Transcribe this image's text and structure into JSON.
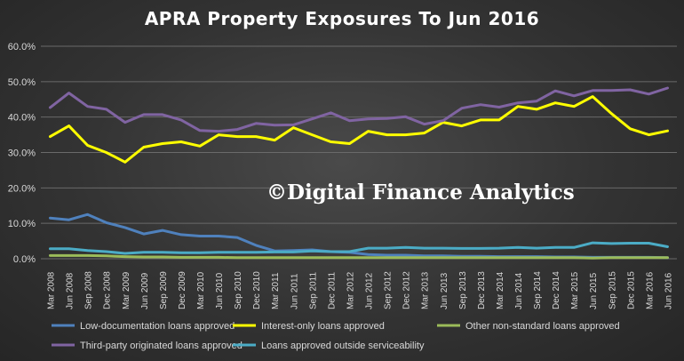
{
  "colors": {
    "Low-documentation loans approved": "#4f81bd",
    "Interest-only loans approved": "#ffff00",
    "Other non-standard loans approved": "#9bbb59",
    "Third-party originated loans approved": "#8064a2",
    "Loans approved outside serviceability": "#4bacc6"
  },
  "watermark": "©Digital Finance Analytics",
  "chart_data": {
    "type": "line",
    "title": "APRA Property Exposures To Jun 2016",
    "xlabel": "",
    "ylabel": "",
    "ylim": [
      0,
      60
    ],
    "ytick_labels": [
      "0.0%",
      "10.0%",
      "20.0%",
      "30.0%",
      "40.0%",
      "50.0%",
      "60.0%"
    ],
    "grid": true,
    "legend_position": "bottom",
    "categories": [
      "Mar 2008",
      "Jun 2008",
      "Sep 2008",
      "Dec 2008",
      "Mar 2009",
      "Jun 2009",
      "Sep 2009",
      "Dec 2009",
      "Mar 2010",
      "Jun 2010",
      "Sep 2010",
      "Dec 2010",
      "Mar 2011",
      "Jun 2011",
      "Sep 2011",
      "Dec 2011",
      "Mar 2012",
      "Jun 2012",
      "Sep 2012",
      "Dec 2012",
      "Mar 2013",
      "Jun 2013",
      "Sep 2013",
      "Dec 2013",
      "Mar 2014",
      "Jun 2014",
      "Sep 2014",
      "Dec 2014",
      "Mar 2015",
      "Jun 2015",
      "Sep 2015",
      "Dec 2015",
      "Mar 2016",
      "Jun 2016"
    ],
    "series": [
      {
        "name": "Low-documentation loans approved",
        "values": [
          11.5,
          11.0,
          12.5,
          10.2,
          8.8,
          7.0,
          8.0,
          6.8,
          6.4,
          6.4,
          6.0,
          3.8,
          2.2,
          2.3,
          2.5,
          2.0,
          1.8,
          1.2,
          1.0,
          1.0,
          0.8,
          0.8,
          0.7,
          0.7,
          0.6,
          0.6,
          0.6,
          0.5,
          0.5,
          0.4,
          0.4,
          0.4,
          0.4,
          0.3
        ]
      },
      {
        "name": "Interest-only loans approved",
        "values": [
          34.5,
          37.5,
          32.0,
          30.0,
          27.3,
          31.5,
          32.5,
          33.0,
          31.8,
          35.0,
          34.5,
          34.5,
          33.5,
          37.0,
          35.0,
          33.0,
          32.5,
          36.0,
          35.0,
          35.0,
          35.5,
          38.5,
          37.5,
          39.2,
          39.2,
          43.0,
          42.2,
          44.0,
          43.0,
          45.8,
          41.0,
          36.7,
          35.0,
          36.1
        ]
      },
      {
        "name": "Other non-standard loans approved",
        "values": [
          0.9,
          0.9,
          0.9,
          0.8,
          0.6,
          0.5,
          0.5,
          0.4,
          0.4,
          0.4,
          0.3,
          0.3,
          0.3,
          0.3,
          0.3,
          0.3,
          0.3,
          0.3,
          0.3,
          0.3,
          0.3,
          0.3,
          0.3,
          0.3,
          0.3,
          0.3,
          0.3,
          0.3,
          0.3,
          0.2,
          0.3,
          0.3,
          0.3,
          0.3
        ]
      },
      {
        "name": "Third-party originated loans approved",
        "values": [
          42.7,
          46.8,
          43.0,
          42.2,
          38.5,
          40.7,
          40.7,
          39.2,
          36.2,
          36.0,
          36.5,
          38.2,
          37.7,
          37.8,
          39.5,
          41.2,
          39.0,
          39.5,
          39.6,
          40.1,
          38.0,
          39.0,
          42.5,
          43.5,
          42.8,
          44.0,
          44.5,
          47.4,
          46.0,
          47.5,
          47.5,
          47.7,
          46.5,
          48.2
        ]
      },
      {
        "name": "Loans approved outside serviceability",
        "values": [
          2.8,
          2.8,
          2.3,
          2.0,
          1.5,
          1.8,
          1.8,
          1.7,
          1.7,
          1.8,
          1.8,
          1.8,
          1.9,
          1.9,
          2.2,
          2.0,
          2.0,
          3.0,
          3.0,
          3.2,
          3.0,
          3.0,
          2.9,
          2.9,
          3.0,
          3.2,
          3.0,
          3.2,
          3.2,
          4.5,
          4.3,
          4.4,
          4.4,
          3.4
        ]
      }
    ]
  }
}
